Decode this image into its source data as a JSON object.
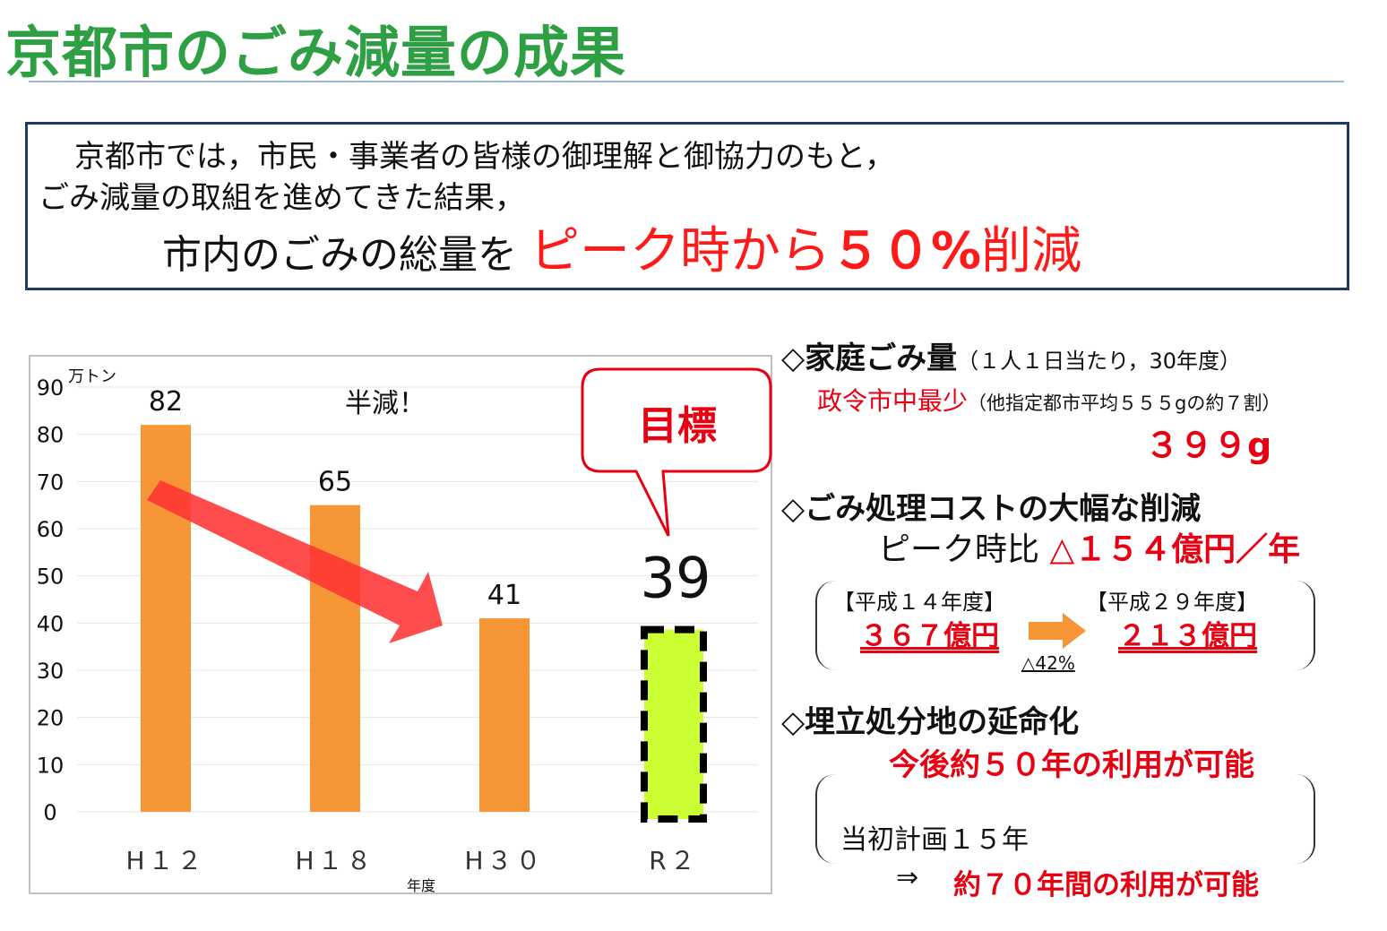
{
  "title": "京都市のごみ減量の成果",
  "summary": {
    "line1": "京都市では，市民・事業者の皆様の御理解と御協力のもと，",
    "line2": "ごみ減量の取組を進めてきた結果，",
    "line3_prefix": "市内のごみの総量を",
    "line3_highlight_a": "ピーク時から",
    "line3_highlight_b": "５０%",
    "line3_highlight_c": "削減"
  },
  "chart_data": {
    "type": "bar",
    "categories": [
      "H１２",
      "H１８",
      "H３０",
      "R２"
    ],
    "values": [
      82,
      65,
      41,
      39
    ],
    "value_labels": [
      "82",
      "65",
      "41",
      "39"
    ],
    "unit": "万トン",
    "xlabel": "年度",
    "ylim": [
      0,
      90
    ],
    "yticks": [
      0,
      10,
      20,
      30,
      40,
      50,
      60,
      70,
      80,
      90
    ],
    "annotations": {
      "half": "半減！",
      "target": "目標"
    },
    "colors": {
      "bar": "#f79636",
      "target_fill": "#ccff33",
      "target_border": "#000000",
      "arrow": "#ff3333",
      "callout": "#e60012"
    }
  },
  "right": {
    "h1_title": "◇家庭ごみ量",
    "h1_paren": "（１人１日当たり，30年度）",
    "h1_sub_red": "政令市中最少",
    "h1_sub_paren": "（他指定都市平均５５５gの約７割）",
    "h1_value": "３９９g",
    "h2_title": "◇ごみ処理コストの大幅な削減",
    "h2_sub": "ピーク時比",
    "h2_value": "△１５４億円／年",
    "h2_left_label": "【平成１４年度】",
    "h2_left_value": "３６７億円",
    "h2_right_label": "【平成２９年度】",
    "h2_right_value": "２１３億円",
    "h2_change": "△42%",
    "h3_title": "◇埋立処分地の延命化",
    "h3_value": "今後約５０年の利用が可能",
    "h3_plan": "当初計画１５年",
    "h3_arrow": "⇒",
    "h3_result": "約７０年間の利用が可能"
  }
}
